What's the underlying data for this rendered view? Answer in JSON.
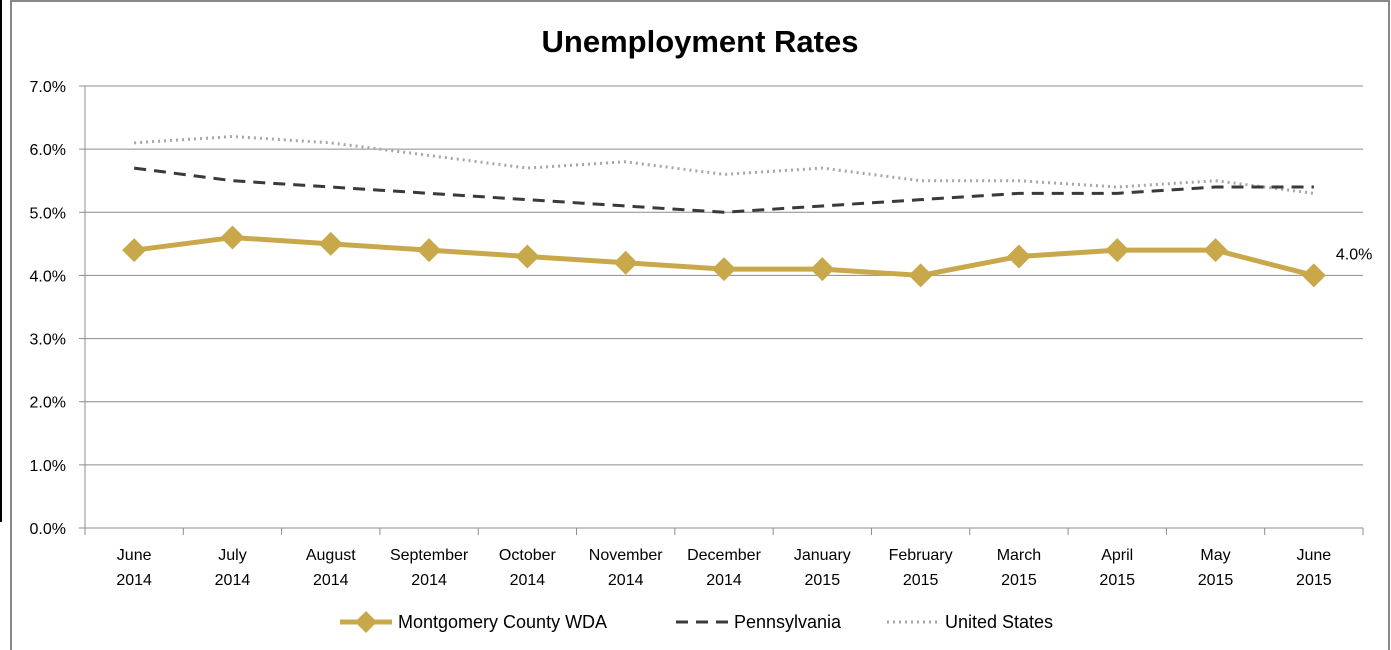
{
  "chart_data": {
    "type": "line",
    "title": "Unemployment Rates",
    "xlabel": "",
    "ylabel": "",
    "ylim": [
      0,
      7
    ],
    "y_ticks": [
      "0.0%",
      "1.0%",
      "2.0%",
      "3.0%",
      "4.0%",
      "5.0%",
      "6.0%",
      "7.0%"
    ],
    "grid": true,
    "legend_position": "bottom",
    "categories": [
      [
        "June",
        "2014"
      ],
      [
        "July",
        "2014"
      ],
      [
        "August",
        "2014"
      ],
      [
        "September",
        "2014"
      ],
      [
        "October",
        "2014"
      ],
      [
        "November",
        "2014"
      ],
      [
        "December",
        "2014"
      ],
      [
        "January",
        "2015"
      ],
      [
        "February",
        "2015"
      ],
      [
        "March",
        "2015"
      ],
      [
        "April",
        "2015"
      ],
      [
        "May",
        "2015"
      ],
      [
        "June",
        "2015"
      ]
    ],
    "series": [
      {
        "name": "Montgomery County WDA",
        "values": [
          4.4,
          4.6,
          4.5,
          4.4,
          4.3,
          4.2,
          4.1,
          4.1,
          4.0,
          4.3,
          4.4,
          4.4,
          4.0
        ],
        "color": "#C9A84C",
        "style": "solid-diamond"
      },
      {
        "name": "Pennsylvania",
        "values": [
          5.7,
          5.5,
          5.4,
          5.3,
          5.2,
          5.1,
          5.0,
          5.1,
          5.2,
          5.3,
          5.3,
          5.4,
          5.4
        ],
        "color": "#3a3a3a",
        "style": "dashed"
      },
      {
        "name": "United States",
        "values": [
          6.1,
          6.2,
          6.1,
          5.9,
          5.7,
          5.8,
          5.6,
          5.7,
          5.5,
          5.5,
          5.4,
          5.5,
          5.3
        ],
        "color": "#a6a6a6",
        "style": "dotted"
      }
    ],
    "annotations": [
      {
        "text": "4.0%",
        "series": 0,
        "index": 12
      }
    ]
  }
}
